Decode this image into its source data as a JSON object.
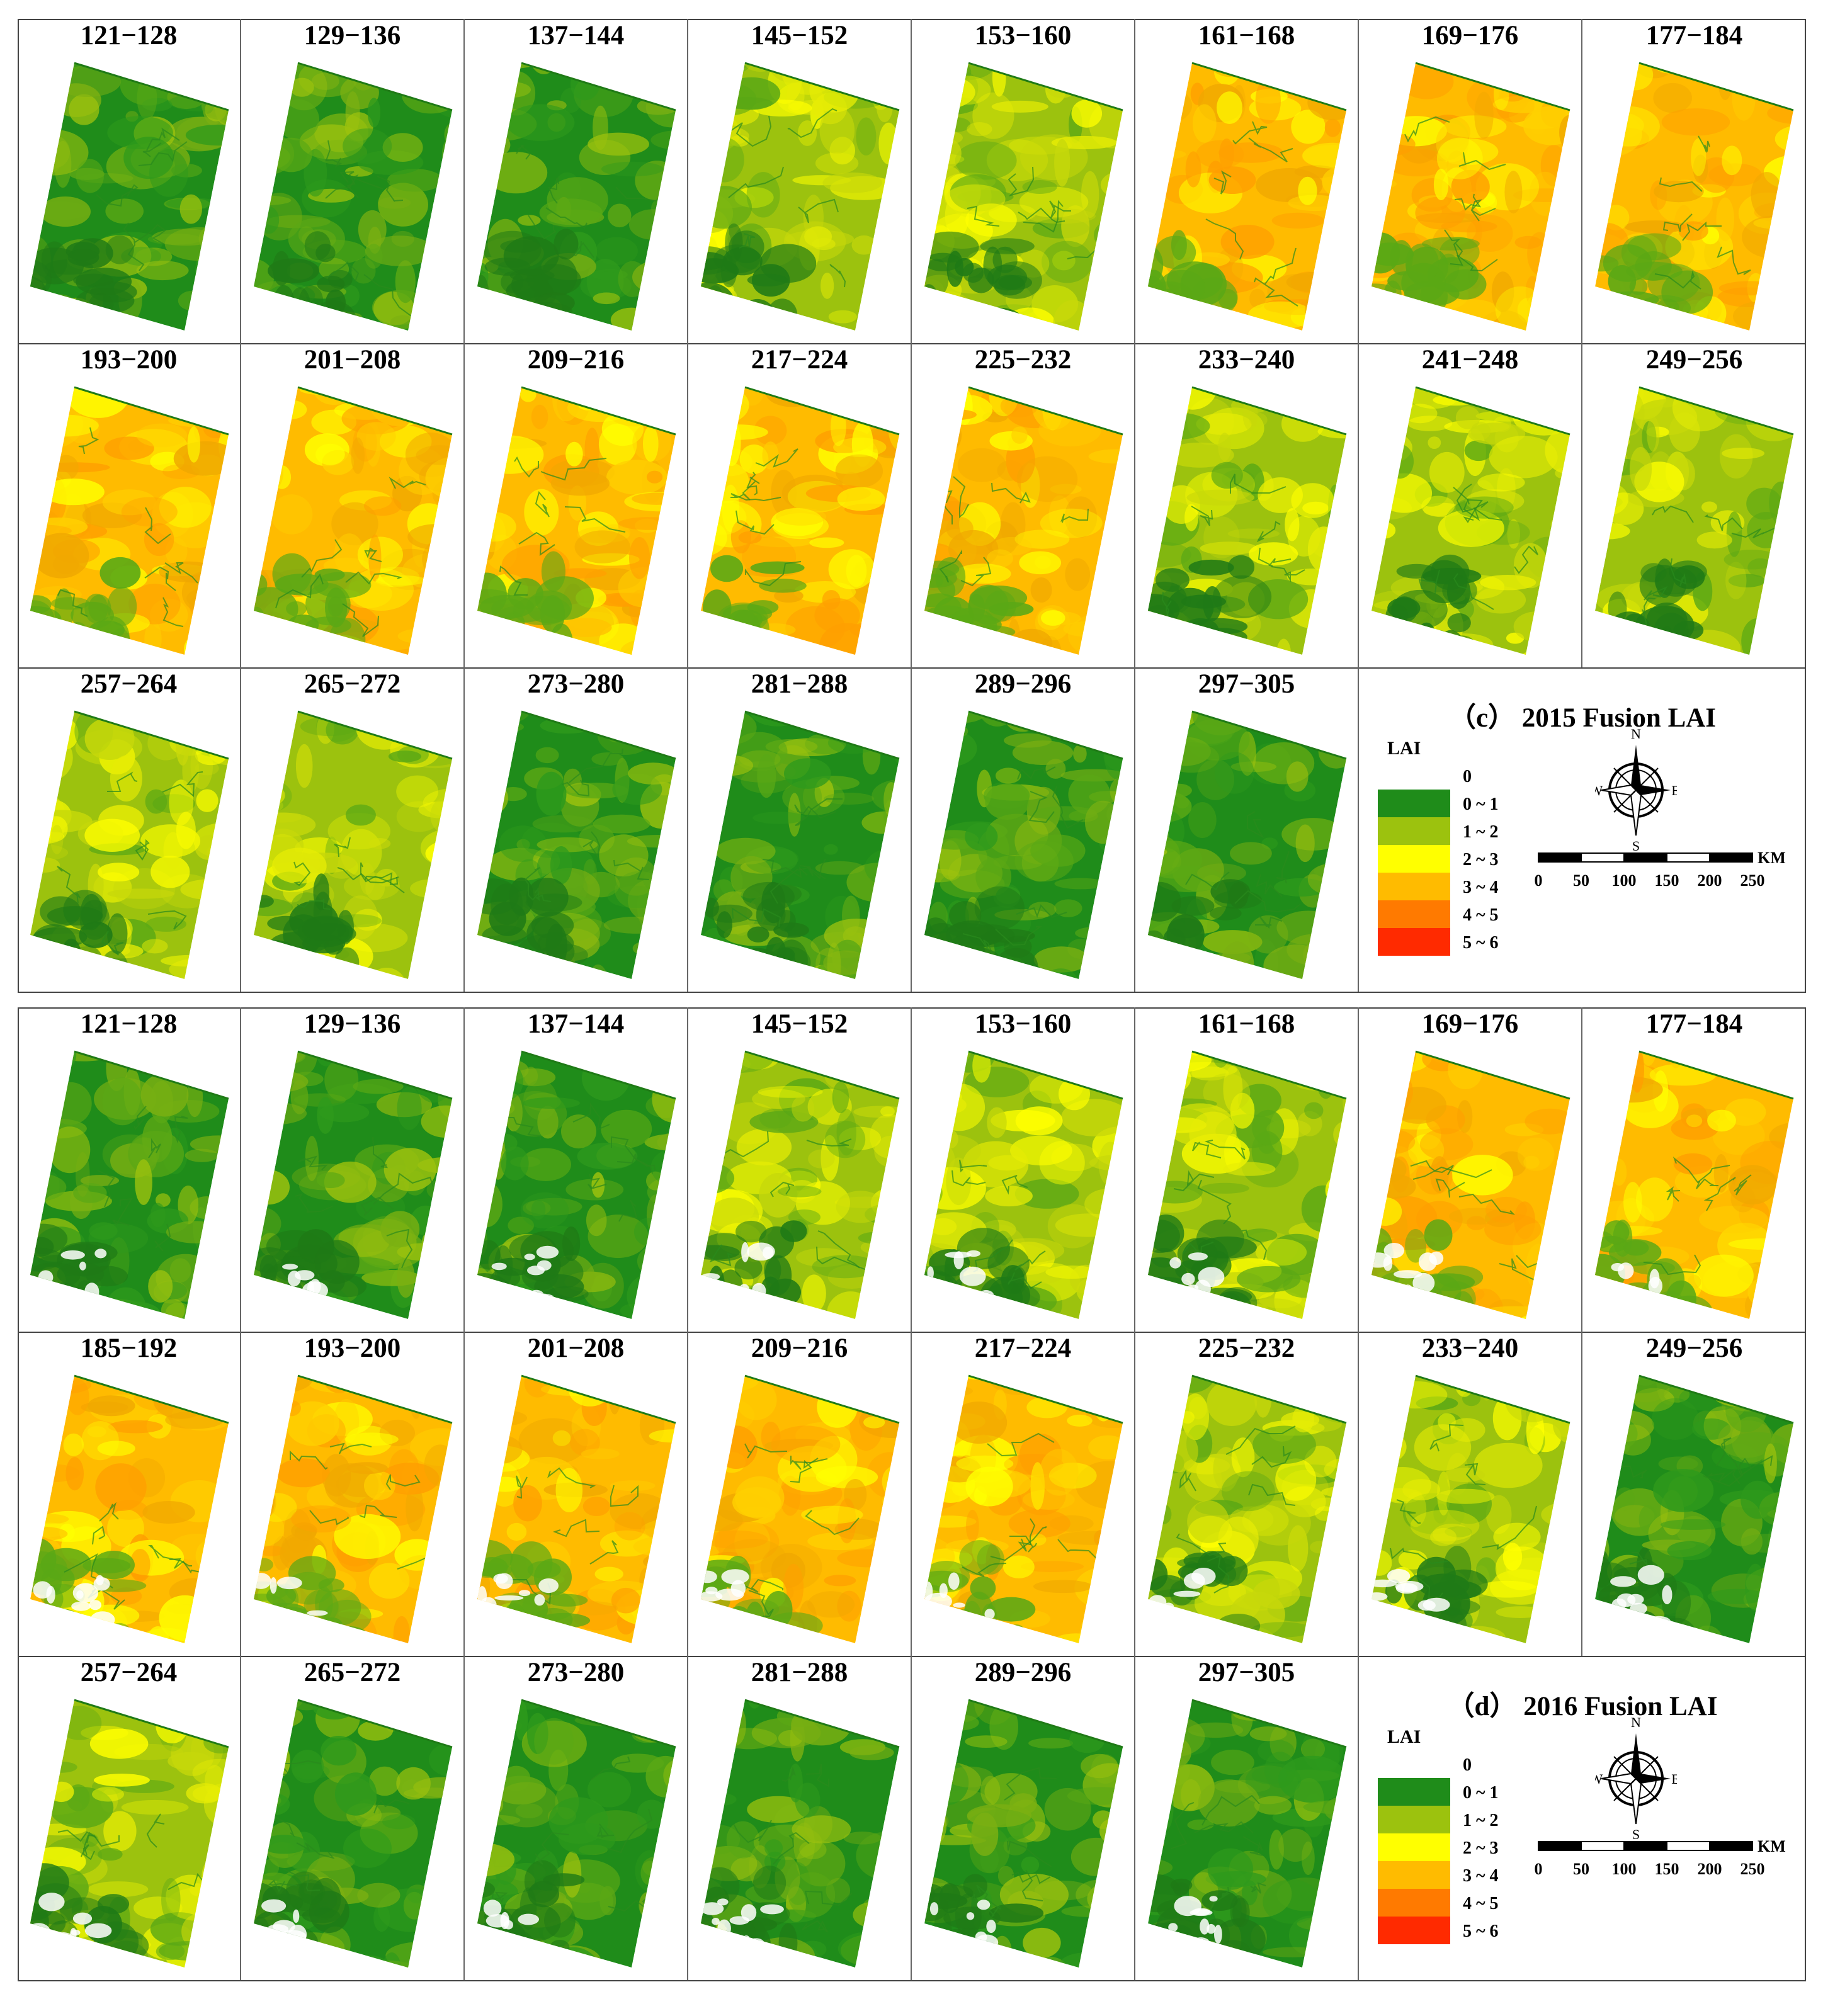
{
  "panels": [
    {
      "id": "c",
      "title": "（c） 2015  Fusion LAI",
      "rows": [
        [
          "121−128",
          "129−136",
          "137−144",
          "145−152",
          "153−160",
          "161−168",
          "169−176",
          "177−184"
        ],
        [
          "193−200",
          "201−208",
          "209−216",
          "217−224",
          "225−232",
          "233−240",
          "241−248",
          "249−256"
        ],
        [
          "257−264",
          "265−272",
          "273−280",
          "281−288",
          "289−296",
          "297−305"
        ]
      ]
    },
    {
      "id": "d",
      "title": "（d） 2016  Fusion LAI",
      "rows": [
        [
          "121−128",
          "129−136",
          "137−144",
          "145−152",
          "153−160",
          "161−168",
          "169−176",
          "177−184"
        ],
        [
          "185−192",
          "193−200",
          "201−208",
          "209−216",
          "217−224",
          "225−232",
          "233−240",
          "249−256"
        ],
        [
          "257−264",
          "265−272",
          "273−280",
          "281−288",
          "289−296",
          "297−305"
        ]
      ]
    }
  ],
  "legend": {
    "title": "LAI",
    "classes": [
      {
        "label": "0",
        "color": "#ffffff"
      },
      {
        "label": "0 ~ 1",
        "color": "#1f8c1a"
      },
      {
        "label": "1 ~ 2",
        "color": "#9cc20e"
      },
      {
        "label": "2 ~ 3",
        "color": "#ffff00"
      },
      {
        "label": "3 ~ 4",
        "color": "#ffbb00"
      },
      {
        "label": "4 ~ 5",
        "color": "#ff7a00"
      },
      {
        "label": "5 ~ 6",
        "color": "#ff2a00"
      }
    ]
  },
  "compass": {
    "n": "N",
    "s": "S",
    "e": "E",
    "w": "W"
  },
  "scale": {
    "unit": "KM",
    "ticks": [
      "0",
      "50",
      "100",
      "150",
      "200",
      "250"
    ]
  },
  "maps": {
    "c": [
      [
        1,
        1,
        1,
        2,
        2,
        3,
        3,
        3
      ],
      [
        3,
        3,
        3,
        3,
        3,
        2,
        2,
        2
      ],
      [
        2,
        2,
        1,
        1,
        1,
        1
      ]
    ],
    "d": [
      [
        1,
        1,
        1,
        2,
        2,
        2,
        3,
        3
      ],
      [
        3,
        3,
        3,
        3,
        3,
        2,
        2,
        1
      ],
      [
        2,
        1,
        1,
        1,
        1,
        1
      ]
    ]
  }
}
